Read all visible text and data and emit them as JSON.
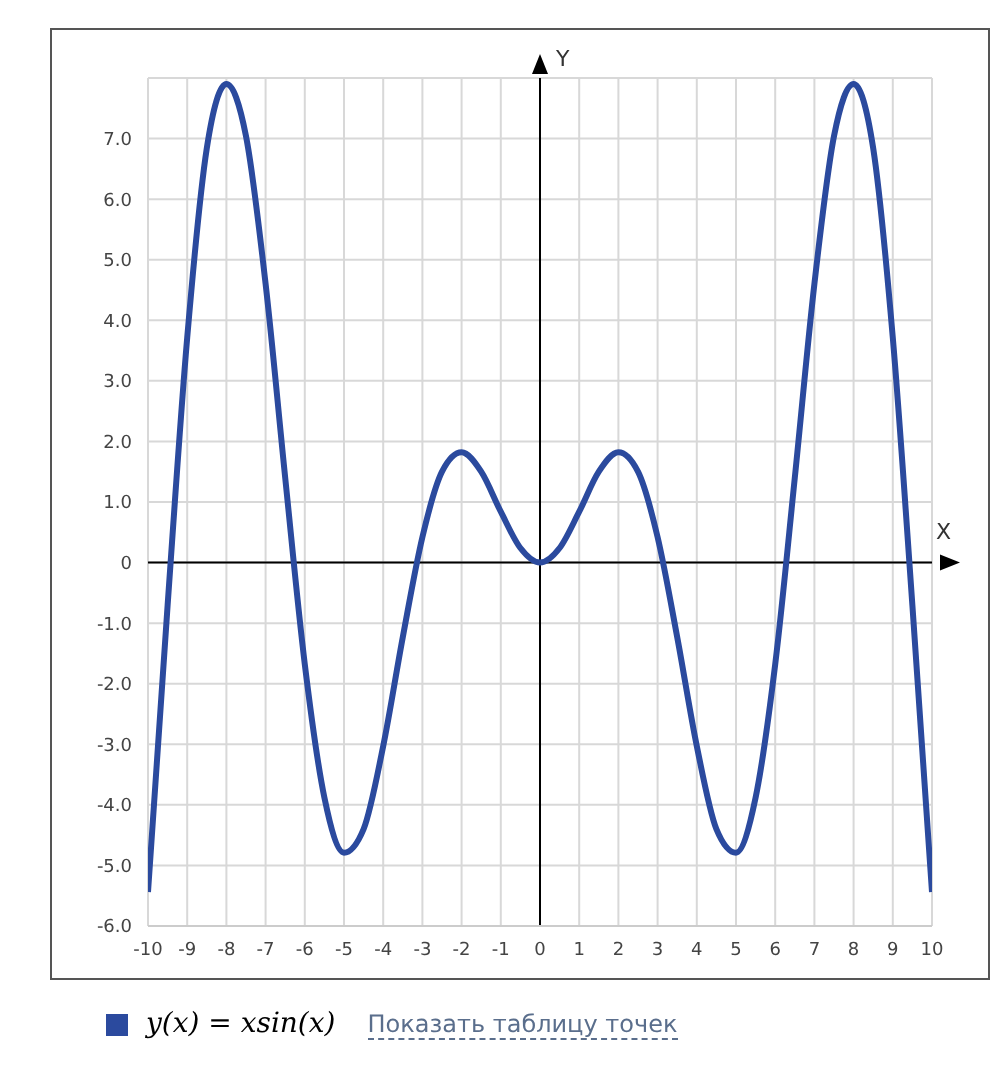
{
  "chart_data": {
    "type": "line",
    "xlabel": "X",
    "ylabel": "Y",
    "x": [
      -10,
      -9.5,
      -9,
      -8.5,
      -8,
      -7.5,
      -7,
      -6.5,
      -6,
      -5.5,
      -5,
      -4.5,
      -4,
      -3.5,
      -3,
      -2.5,
      -2,
      -1.5,
      -1,
      -0.5,
      0,
      0.5,
      1,
      1.5,
      2,
      2.5,
      3,
      3.5,
      4,
      4.5,
      5,
      5.5,
      6,
      6.5,
      7,
      7.5,
      8,
      8.5,
      9,
      9.5,
      10
    ],
    "series": [
      {
        "name": "y(x) = xsin(x)",
        "color": "#2b4a9e",
        "values": [
          -5.44,
          -0.71,
          3.71,
          6.84,
          7.9,
          7.04,
          4.6,
          1.4,
          -1.68,
          -3.88,
          -4.79,
          -4.4,
          -3.03,
          -1.23,
          0.42,
          1.5,
          1.82,
          1.5,
          0.84,
          0.24,
          0,
          0.24,
          0.84,
          1.5,
          1.82,
          1.5,
          0.42,
          -1.23,
          -3.03,
          -4.4,
          -4.79,
          -3.88,
          -1.68,
          1.4,
          4.6,
          7.04,
          7.9,
          6.84,
          3.71,
          -0.71,
          -5.44
        ]
      }
    ],
    "xlim": [
      -10,
      10
    ],
    "xticks": [
      -10,
      -9,
      -8,
      -7,
      -6,
      -5,
      -4,
      -3,
      -2,
      -1,
      0,
      1,
      2,
      3,
      4,
      5,
      6,
      7,
      8,
      9,
      10
    ],
    "ylim": [
      -6,
      8
    ],
    "yticks": [
      {
        "value": -6,
        "label": "-6.0"
      },
      {
        "value": -5,
        "label": "-5.0"
      },
      {
        "value": -4,
        "label": "-4.0"
      },
      {
        "value": -3,
        "label": "-3.0"
      },
      {
        "value": -2,
        "label": "-2.0"
      },
      {
        "value": -1,
        "label": "-1.0"
      },
      0,
      {
        "value": 1,
        "label": "1.0"
      },
      {
        "value": 2,
        "label": "2.0"
      },
      {
        "value": 3,
        "label": "3.0"
      },
      {
        "value": 4,
        "label": "4.0"
      },
      {
        "value": 5,
        "label": "5.0"
      },
      {
        "value": 6,
        "label": "6.0"
      },
      {
        "value": 7,
        "label": "7.0"
      }
    ],
    "grid": true,
    "legend": "bottom",
    "marker": "none",
    "line_style": "solid",
    "annotations": [
      "Показать таблицу точек"
    ]
  }
}
